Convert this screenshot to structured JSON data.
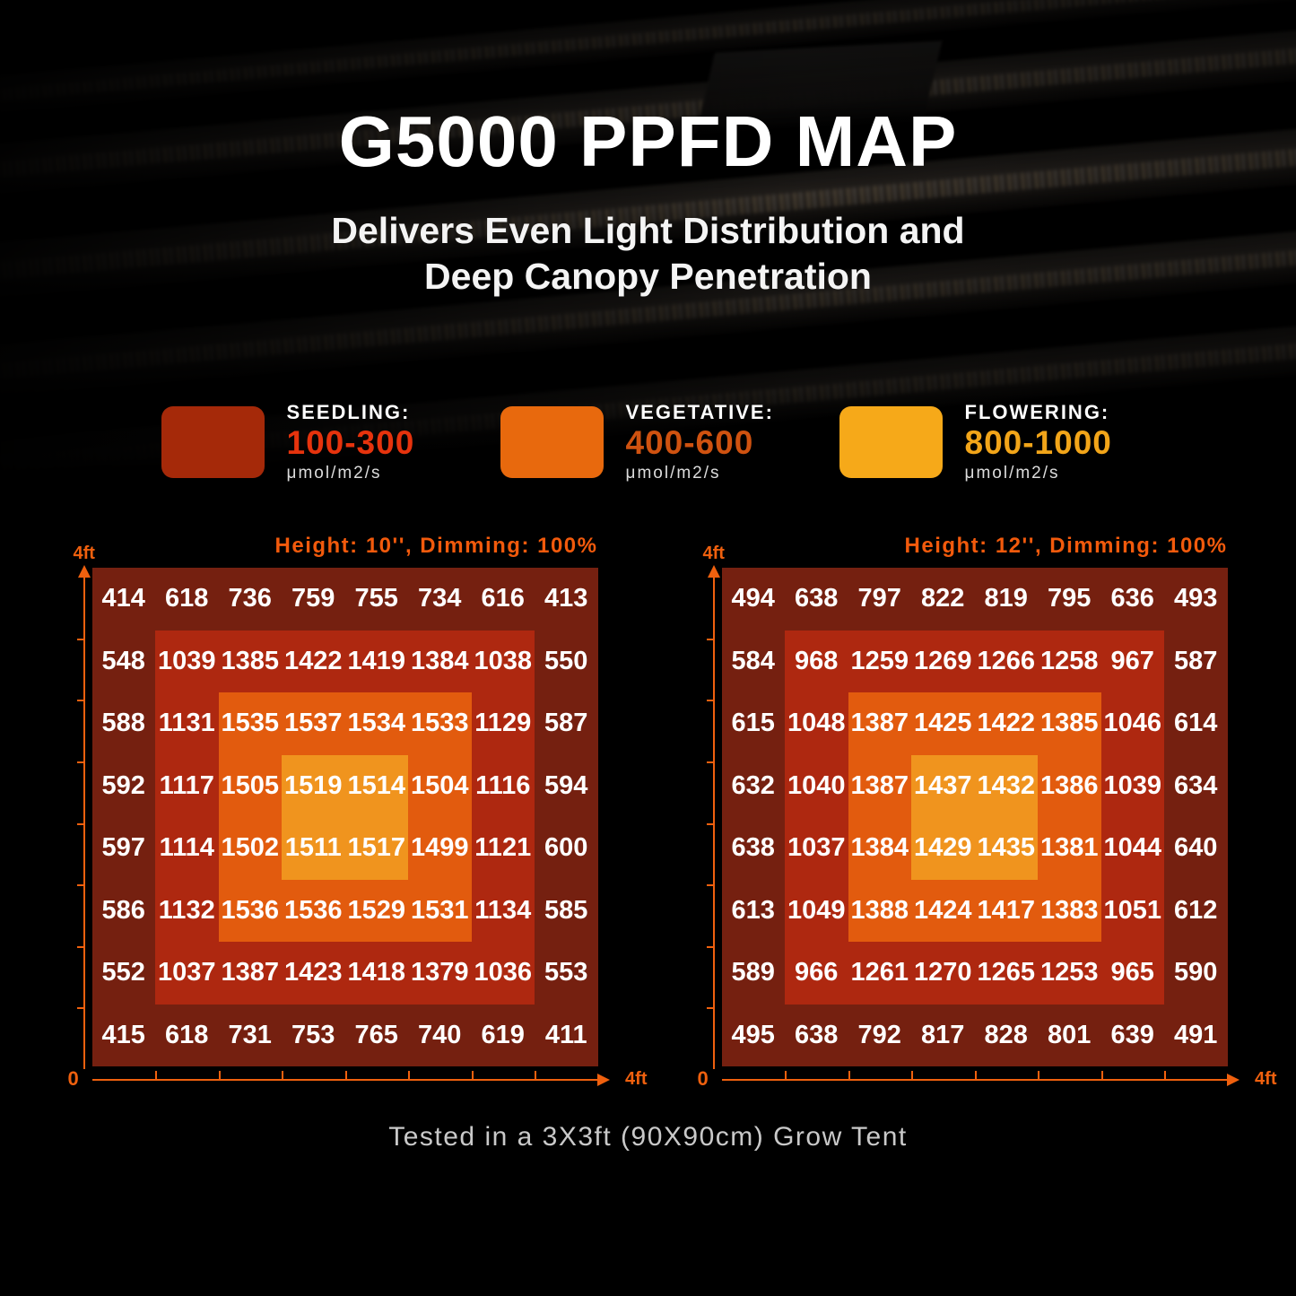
{
  "page": {
    "title": "G5000 PPFD MAP",
    "subtitle_line1": "Delivers Even Light Distribution and",
    "subtitle_line2": "Deep Canopy Penetration",
    "footer": "Tested in a 3X3ft (90X90cm) Grow Tent"
  },
  "legend": {
    "items": [
      {
        "name": "seedling",
        "label": "SEEDLING:",
        "range": "100-300",
        "unit": "μmol/m2/s",
        "swatch_color": "#a52909",
        "range_color": "#e6330d"
      },
      {
        "name": "vegetative",
        "label": "VEGETATIVE:",
        "range": "400-600",
        "unit": "μmol/m2/s",
        "swatch_color": "#e8690d",
        "range_color": "#cf5210"
      },
      {
        "name": "flowering",
        "label": "FLOWERING:",
        "range": "800-1000",
        "unit": "μmol/m2/s",
        "swatch_color": "#f6a919",
        "range_color": "#f2a519"
      }
    ]
  },
  "chart_data": [
    {
      "type": "heatmap",
      "title": "Height: 10'', Dimming: 100%",
      "x_axis": {
        "origin_label": "0",
        "max_label": "4ft"
      },
      "y_axis": {
        "max_label": "4ft"
      },
      "grid": {
        "rows": 8,
        "cols": 8
      },
      "values": [
        [
          414,
          618,
          736,
          759,
          755,
          734,
          616,
          413
        ],
        [
          548,
          1039,
          1385,
          1422,
          1419,
          1384,
          1038,
          550
        ],
        [
          588,
          1131,
          1535,
          1537,
          1534,
          1533,
          1129,
          587
        ],
        [
          592,
          1117,
          1505,
          1519,
          1514,
          1504,
          1116,
          594
        ],
        [
          597,
          1114,
          1502,
          1511,
          1517,
          1499,
          1121,
          600
        ],
        [
          586,
          1132,
          1536,
          1536,
          1529,
          1531,
          1134,
          585
        ],
        [
          552,
          1037,
          1387,
          1423,
          1418,
          1379,
          1036,
          553
        ],
        [
          415,
          618,
          731,
          753,
          765,
          740,
          619,
          411
        ]
      ],
      "zone_colors": {
        "outer": "#752010",
        "mid": "#ae2810",
        "inner": "#e25b0e",
        "center": "#f0941e"
      }
    },
    {
      "type": "heatmap",
      "title": "Height: 12'', Dimming: 100%",
      "x_axis": {
        "origin_label": "0",
        "max_label": "4ft"
      },
      "y_axis": {
        "max_label": "4ft"
      },
      "grid": {
        "rows": 8,
        "cols": 8
      },
      "values": [
        [
          494,
          638,
          797,
          822,
          819,
          795,
          636,
          493
        ],
        [
          584,
          968,
          1259,
          1269,
          1266,
          1258,
          967,
          587
        ],
        [
          615,
          1048,
          1387,
          1425,
          1422,
          1385,
          1046,
          614
        ],
        [
          632,
          1040,
          1387,
          1437,
          1432,
          1386,
          1039,
          634
        ],
        [
          638,
          1037,
          1384,
          1429,
          1435,
          1381,
          1044,
          640
        ],
        [
          613,
          1049,
          1388,
          1424,
          1417,
          1383,
          1051,
          612
        ],
        [
          589,
          966,
          1261,
          1270,
          1265,
          1253,
          965,
          590
        ],
        [
          495,
          638,
          792,
          817,
          828,
          801,
          639,
          491
        ]
      ],
      "zone_colors": {
        "outer": "#752010",
        "mid": "#ae2810",
        "inner": "#e25b0e",
        "center": "#f0941e"
      }
    }
  ]
}
